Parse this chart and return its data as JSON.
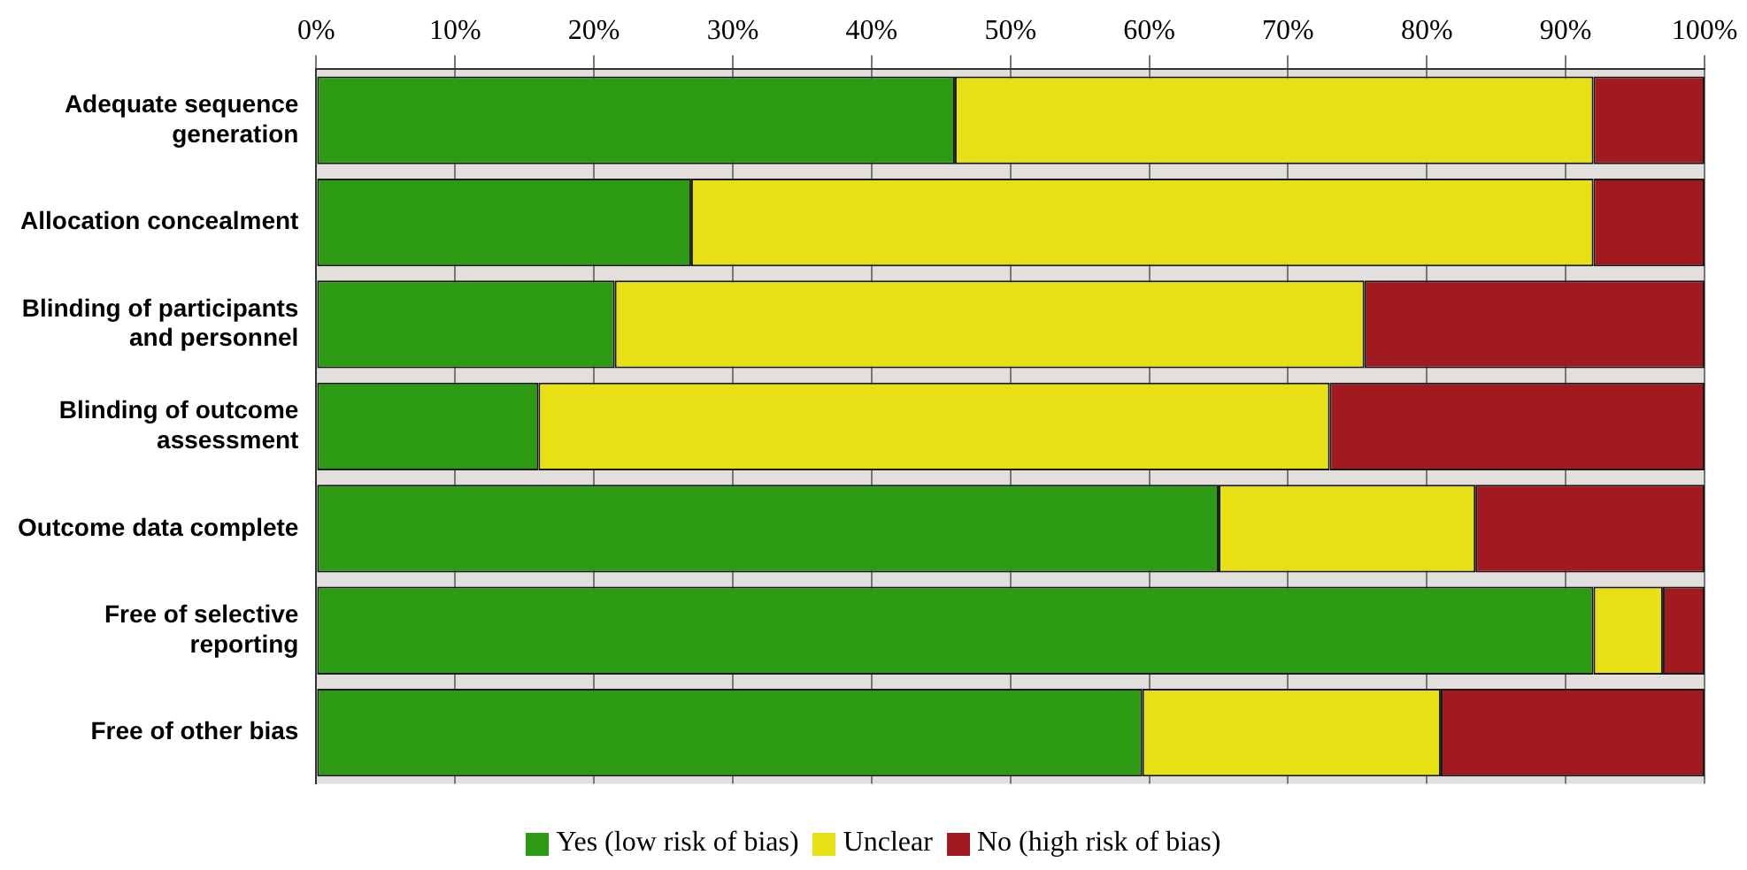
{
  "chart_data": {
    "type": "bar",
    "orientation": "horizontal",
    "stacked": true,
    "categories": [
      "Adequate sequence generation",
      "Allocation concealment",
      "Blinding of participants and personnel",
      "Blinding of outcome assessment",
      "Outcome data complete",
      "Free of selective reporting",
      "Free of other bias"
    ],
    "series": [
      {
        "name": "Yes (low risk of bias)",
        "color": "#2c9a12",
        "values": [
          46,
          27,
          21.5,
          16,
          65,
          92,
          59.5
        ]
      },
      {
        "name": "Unclear",
        "color": "#e7e015",
        "values": [
          46,
          65,
          54,
          57,
          18.5,
          5,
          21.5
        ]
      },
      {
        "name": "No (high risk of bias)",
        "color": "#a11a20",
        "values": [
          8,
          8,
          24.5,
          27,
          16.5,
          3,
          19
        ]
      }
    ],
    "xlim": [
      0,
      100
    ],
    "xticks": [
      {
        "value": 0,
        "label": "0%"
      },
      {
        "value": 10,
        "label": "10%"
      },
      {
        "value": 20,
        "label": "20%"
      },
      {
        "value": 30,
        "label": "30%"
      },
      {
        "value": 40,
        "label": "40%"
      },
      {
        "value": 50,
        "label": "50%"
      },
      {
        "value": 60,
        "label": "60%"
      },
      {
        "value": 70,
        "label": "70%"
      },
      {
        "value": 80,
        "label": "80%"
      },
      {
        "value": 90,
        "label": "90%"
      },
      {
        "value": 100,
        "label": "100%"
      }
    ],
    "grid": "x",
    "legend": "bottom"
  }
}
